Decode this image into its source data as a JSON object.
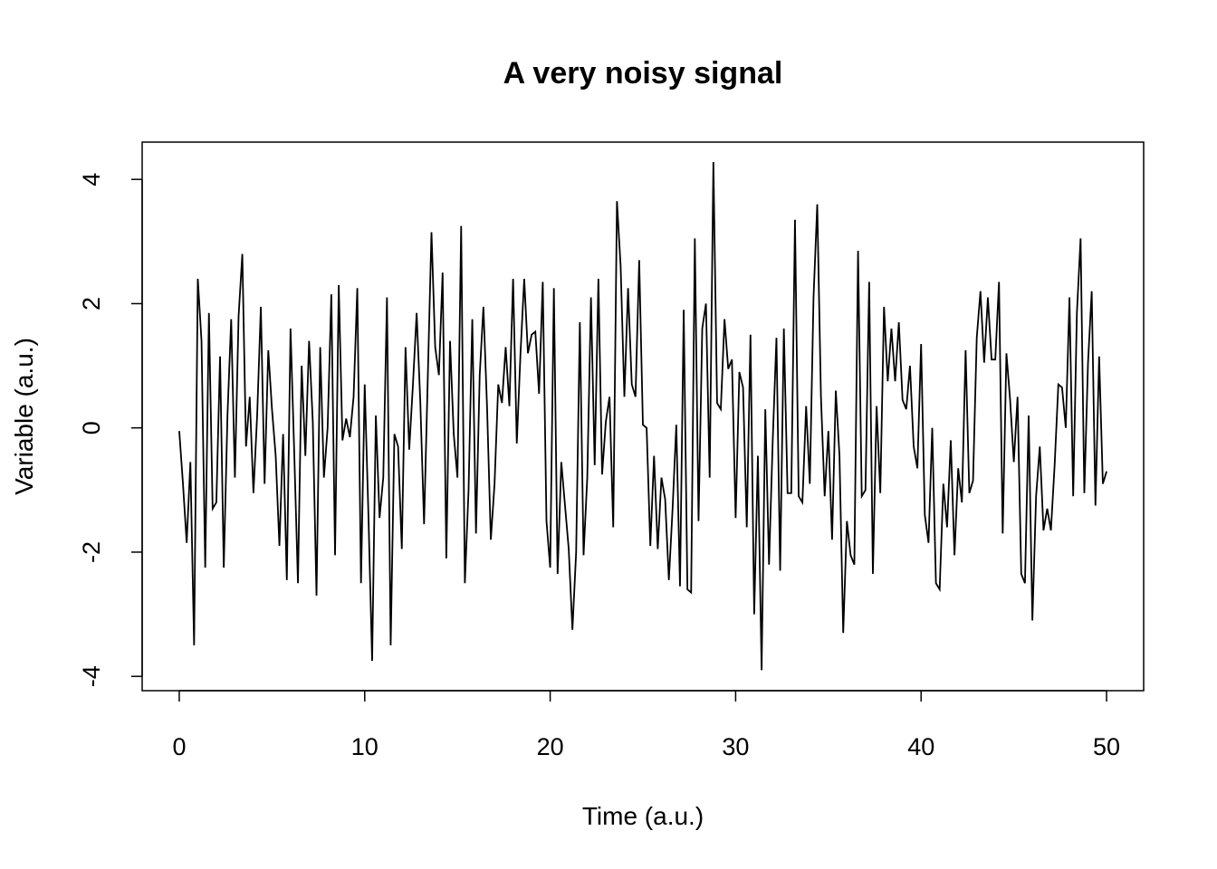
{
  "chart_data": {
    "type": "line",
    "title": "A very noisy signal",
    "x_label": "Time (a.u.)",
    "y_label": "Variable (a.u.)",
    "x": [
      0,
      0.2,
      0.4,
      0.6,
      0.8,
      1,
      1.2,
      1.4,
      1.6,
      1.8,
      2,
      2.2,
      2.4,
      2.6,
      2.8,
      3,
      3.2,
      3.4,
      3.6,
      3.8,
      4,
      4.2,
      4.4,
      4.6,
      4.8,
      5,
      5.2,
      5.4,
      5.6,
      5.8,
      6,
      6.2,
      6.4,
      6.6,
      6.8,
      7,
      7.2,
      7.4,
      7.6,
      7.8,
      8,
      8.2,
      8.4,
      8.6,
      8.8,
      9,
      9.2,
      9.4,
      9.6,
      9.8,
      10,
      10.2,
      10.4,
      10.6,
      10.8,
      11,
      11.2,
      11.4,
      11.6,
      11.8,
      12,
      12.2,
      12.4,
      12.6,
      12.8,
      13,
      13.2,
      13.4,
      13.6,
      13.8,
      14,
      14.2,
      14.4,
      14.6,
      14.8,
      15,
      15.2,
      15.4,
      15.6,
      15.8,
      16,
      16.2,
      16.4,
      16.6,
      16.8,
      17,
      17.2,
      17.4,
      17.6,
      17.8,
      18,
      18.2,
      18.4,
      18.6,
      18.8,
      19,
      19.2,
      19.4,
      19.6,
      19.8,
      20,
      20.2,
      20.4,
      20.6,
      20.8,
      21,
      21.2,
      21.4,
      21.6,
      21.8,
      22,
      22.2,
      22.4,
      22.6,
      22.8,
      23,
      23.2,
      23.4,
      23.6,
      23.8,
      24,
      24.2,
      24.4,
      24.6,
      24.8,
      25,
      25.2,
      25.4,
      25.6,
      25.8,
      26,
      26.2,
      26.4,
      26.6,
      26.8,
      27,
      27.2,
      27.4,
      27.6,
      27.8,
      28,
      28.2,
      28.4,
      28.6,
      28.8,
      29,
      29.2,
      29.4,
      29.6,
      29.8,
      30,
      30.2,
      30.4,
      30.6,
      30.8,
      31,
      31.2,
      31.4,
      31.6,
      31.8,
      32,
      32.2,
      32.4,
      32.6,
      32.8,
      33,
      33.2,
      33.4,
      33.6,
      33.8,
      34,
      34.2,
      34.4,
      34.6,
      34.8,
      35,
      35.2,
      35.4,
      35.6,
      35.8,
      36,
      36.2,
      36.4,
      36.6,
      36.8,
      37,
      37.2,
      37.4,
      37.6,
      37.8,
      38,
      38.2,
      38.4,
      38.6,
      38.8,
      39,
      39.2,
      39.4,
      39.6,
      39.8,
      40,
      40.2,
      40.4,
      40.6,
      40.8,
      41,
      41.2,
      41.4,
      41.6,
      41.8,
      42,
      42.2,
      42.4,
      42.6,
      42.8,
      43,
      43.2,
      43.4,
      43.6,
      43.8,
      44,
      44.2,
      44.4,
      44.6,
      44.8,
      45,
      45.2,
      45.4,
      45.6,
      45.8,
      46,
      46.2,
      46.4,
      46.6,
      46.8,
      47,
      47.2,
      47.4,
      47.6,
      47.8,
      48,
      48.2,
      48.4,
      48.6,
      48.8,
      49,
      49.2,
      49.4,
      49.6,
      49.8,
      50
    ],
    "values": [
      -0.05,
      -0.9,
      -1.85,
      -0.55,
      -3.5,
      2.4,
      1.4,
      -2.25,
      1.85,
      -1.3,
      -1.2,
      1.15,
      -2.25,
      0.2,
      1.75,
      -0.8,
      1.8,
      2.8,
      -0.3,
      0.5,
      -1.05,
      0.2,
      1.95,
      -0.9,
      1.25,
      0.3,
      -0.45,
      -1.9,
      -0.1,
      -2.45,
      1.6,
      -0.4,
      -2.5,
      1.0,
      -0.45,
      1.4,
      0.1,
      -2.7,
      1.3,
      -0.8,
      0.0,
      2.15,
      -2.05,
      2.3,
      -0.2,
      0.15,
      -0.15,
      0.5,
      2.25,
      -2.5,
      0.7,
      -1.4,
      -3.75,
      0.2,
      -1.45,
      -0.8,
      2.1,
      -3.5,
      -0.1,
      -0.3,
      -1.95,
      1.3,
      -0.35,
      0.7,
      1.85,
      0.4,
      -1.55,
      0.8,
      3.15,
      1.3,
      0.85,
      2.5,
      -2.1,
      1.4,
      -0.1,
      -0.8,
      3.25,
      -2.5,
      -1.0,
      1.75,
      -1.7,
      0.85,
      1.95,
      0.3,
      -1.8,
      -0.9,
      0.7,
      0.4,
      1.3,
      0.35,
      2.4,
      -0.25,
      1.2,
      2.4,
      1.2,
      1.5,
      1.55,
      0.55,
      2.35,
      -1.5,
      -2.25,
      2.25,
      -2.35,
      -0.55,
      -1.25,
      -1.95,
      -3.25,
      -2.0,
      1.7,
      -2.05,
      -0.8,
      2.1,
      -0.6,
      2.4,
      -0.75,
      0.1,
      0.5,
      -1.6,
      3.65,
      2.6,
      0.5,
      2.25,
      0.7,
      0.5,
      2.7,
      0.05,
      0.0,
      -1.9,
      -0.45,
      -1.95,
      -0.8,
      -1.15,
      -2.45,
      -1.3,
      0.05,
      -2.55,
      1.9,
      -2.6,
      -2.65,
      3.05,
      -1.5,
      1.6,
      2.0,
      -0.8,
      4.28,
      0.4,
      0.3,
      1.75,
      0.95,
      1.1,
      -1.45,
      0.9,
      0.65,
      -1.6,
      1.5,
      -3.0,
      -0.45,
      -3.9,
      0.3,
      -2.2,
      -0.2,
      1.45,
      -2.3,
      1.6,
      -1.05,
      -1.05,
      3.35,
      -1.1,
      -1.2,
      0.35,
      -0.9,
      2.1,
      3.6,
      0.5,
      -1.1,
      -0.05,
      -1.8,
      0.6,
      -0.45,
      -3.3,
      -1.5,
      -2.05,
      -2.2,
      2.85,
      -1.1,
      -1.0,
      2.35,
      -2.35,
      0.35,
      -1.05,
      1.95,
      0.75,
      1.6,
      0.75,
      1.7,
      0.45,
      0.3,
      1.0,
      -0.3,
      -0.65,
      1.35,
      -1.4,
      -1.85,
      0.0,
      -2.5,
      -2.6,
      -0.9,
      -1.6,
      -0.2,
      -2.05,
      -0.65,
      -1.2,
      1.25,
      -1.05,
      -0.85,
      1.45,
      2.2,
      1.05,
      2.1,
      1.1,
      1.1,
      2.35,
      -1.7,
      1.2,
      0.45,
      -0.55,
      0.5,
      -2.35,
      -2.5,
      0.2,
      -3.1,
      -1.1,
      -0.3,
      -1.65,
      -1.3,
      -1.65,
      -0.6,
      0.7,
      0.65,
      0.0,
      2.1,
      -1.1,
      1.85,
      3.05,
      -1.05,
      1.05,
      2.2,
      -1.25,
      1.15,
      -0.9,
      -0.7
    ],
    "color": "#000000",
    "xlim": [
      -2,
      52
    ],
    "ylim": [
      -4.23,
      4.6
    ],
    "xticks": [
      0,
      10,
      20,
      30,
      40,
      50
    ],
    "yticks": [
      -4,
      -2,
      0,
      2,
      4
    ]
  }
}
